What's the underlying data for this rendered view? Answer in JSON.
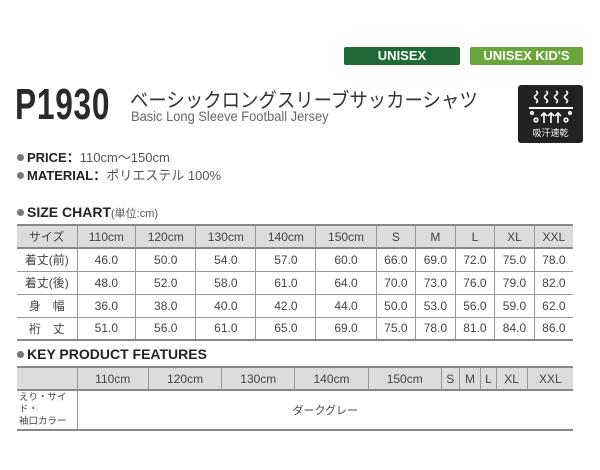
{
  "badges": [
    "UNISEX",
    "UNISEX KID'S"
  ],
  "colors": {
    "unisex": "#1f6a35",
    "kids": "#6aa53a"
  },
  "product": {
    "code": "P1930",
    "name_jp": "ベーシックロングスリーブサッカーシャツ",
    "name_en": "Basic Long Sleeve Football Jersey"
  },
  "feature_icon": {
    "name": "quick-dry-icon",
    "label": "吸汗速乾"
  },
  "specs": {
    "price_label": "PRICE：",
    "price": "110cm～150cm",
    "material_label": "MATERIAL：",
    "material": "ポリエステル 100%"
  },
  "size_chart": {
    "title": "SIZE CHART",
    "unit": "(単位:cm)",
    "headers": [
      "サイズ",
      "110cm",
      "120cm",
      "130cm",
      "140cm",
      "150cm",
      "S",
      "M",
      "L",
      "XL",
      "XXL"
    ],
    "rows": [
      [
        "着丈(前)",
        "46.0",
        "50.0",
        "54.0",
        "57.0",
        "60.0",
        "66.0",
        "69.0",
        "72.0",
        "75.0",
        "78.0"
      ],
      [
        "着丈(後)",
        "48.0",
        "52.0",
        "58.0",
        "61.0",
        "64.0",
        "70.0",
        "73.0",
        "76.0",
        "79.0",
        "82.0"
      ],
      [
        "身　幅",
        "36.0",
        "38.0",
        "40.0",
        "42.0",
        "44.0",
        "50.0",
        "53.0",
        "56.0",
        "59.0",
        "62.0"
      ],
      [
        "裄　丈",
        "51.0",
        "56.0",
        "61.0",
        "65.0",
        "69.0",
        "75.0",
        "78.0",
        "81.0",
        "84.0",
        "86.0"
      ]
    ]
  },
  "features": {
    "title": "KEY PRODUCT FEATURES",
    "headers": [
      "",
      "110cm",
      "120cm",
      "130cm",
      "140cm",
      "150cm",
      "S",
      "M",
      "L",
      "XL",
      "XXL"
    ],
    "row_label_1": "えり・サイド・",
    "row_label_2": "袖口カラー",
    "value": "ダークグレー"
  }
}
